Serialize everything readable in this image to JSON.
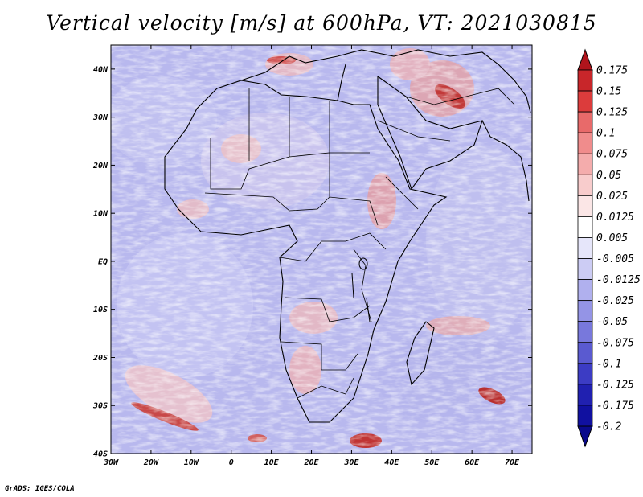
{
  "title": "Vertical velocity [m/s] at 600hPa, VT: 2021030815",
  "credit": "GrADS: IGES/COLA",
  "map": {
    "lon_range": [
      -30,
      75
    ],
    "lat_range": [
      -40,
      45
    ],
    "x_ticks": [
      "30W",
      "20W",
      "10W",
      "0",
      "10E",
      "20E",
      "30E",
      "40E",
      "50E",
      "60E",
      "70E"
    ],
    "x_tick_values": [
      -30,
      -20,
      -10,
      0,
      10,
      20,
      30,
      40,
      50,
      60,
      70
    ],
    "y_ticks": [
      "40N",
      "30N",
      "20N",
      "10N",
      "EQ",
      "10S",
      "20S",
      "30S",
      "40S"
    ],
    "y_tick_values": [
      40,
      30,
      20,
      10,
      0,
      -10,
      -20,
      -30,
      -40
    ]
  },
  "colorbar": {
    "levels": [
      "0.175",
      "0.15",
      "0.125",
      "0.1",
      "0.075",
      "0.05",
      "0.025",
      "0.0125",
      "0.005",
      "-0.005",
      "-0.0125",
      "-0.025",
      "-0.05",
      "-0.075",
      "-0.1",
      "-0.125",
      "-0.175",
      "-0.2"
    ],
    "colors": [
      "#b0141c",
      "#c8262a",
      "#dc3c3c",
      "#e86a6a",
      "#f08c8c",
      "#f4acac",
      "#f8cccc",
      "#fbe6e6",
      "#ffffff",
      "#e6e6fa",
      "#ccccf4",
      "#b0b0ee",
      "#9494e6",
      "#7878dc",
      "#5a5ad0",
      "#3c3cc4",
      "#2020b0",
      "#1010a0",
      "#0a0a8c"
    ]
  }
}
